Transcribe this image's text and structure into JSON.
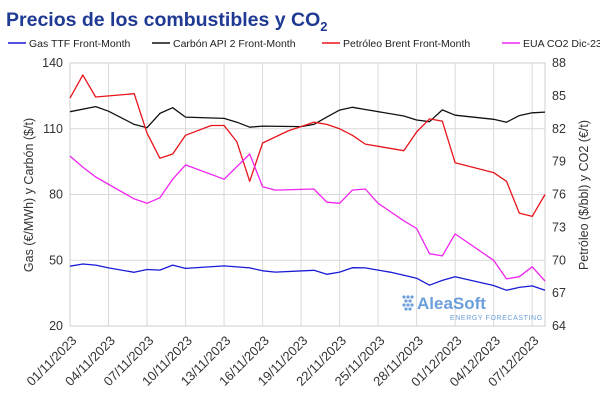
{
  "chart_data": {
    "type": "line",
    "title": "Precios de los combustibles y CO",
    "title_subscript": "2",
    "ylabel_left": "Gas (€/MWh) y Carbón ($/t)",
    "ylabel_right": "Petróleo ($/bbl) y CO2 (€/t)",
    "ylim_left": [
      20,
      140
    ],
    "ylim_right": [
      64,
      88
    ],
    "yticks_left": [
      20,
      50,
      80,
      110,
      140
    ],
    "yticks_right": [
      64,
      67,
      70,
      73,
      76,
      79,
      82,
      85,
      88
    ],
    "xlim": [
      0,
      37
    ],
    "xticks": [
      {
        "x": 0,
        "label": "01/11/2023"
      },
      {
        "x": 3,
        "label": "04/11/2023"
      },
      {
        "x": 6,
        "label": "07/11/2023"
      },
      {
        "x": 9,
        "label": "10/11/2023"
      },
      {
        "x": 12,
        "label": "13/11/2023"
      },
      {
        "x": 15,
        "label": "16/11/2023"
      },
      {
        "x": 18,
        "label": "19/11/2023"
      },
      {
        "x": 21,
        "label": "22/11/2023"
      },
      {
        "x": 24,
        "label": "25/11/2023"
      },
      {
        "x": 27,
        "label": "28/11/2023"
      },
      {
        "x": 30,
        "label": "01/12/2023"
      },
      {
        "x": 33,
        "label": "04/12/2023"
      },
      {
        "x": 36,
        "label": "07/12/2023"
      }
    ],
    "grid": true,
    "legend_position": "top",
    "series": [
      {
        "name": "Gas TTF Front-Month",
        "axis": "left",
        "color": "#1a1ad6",
        "points": [
          [
            0,
            47.3
          ],
          [
            1,
            48.3
          ],
          [
            2,
            47.8
          ],
          [
            3,
            46.5
          ],
          [
            5,
            44.5
          ],
          [
            6,
            45.8
          ],
          [
            7,
            45.5
          ],
          [
            8,
            47.8
          ],
          [
            9,
            46.3
          ],
          [
            12,
            47.4
          ],
          [
            14,
            46.5
          ],
          [
            15,
            45.2
          ],
          [
            16,
            44.6
          ],
          [
            19,
            45.4
          ],
          [
            20,
            43.6
          ],
          [
            21,
            44.6
          ],
          [
            22,
            46.6
          ],
          [
            23,
            46.5
          ],
          [
            24,
            45.5
          ],
          [
            25,
            44.5
          ],
          [
            26,
            43.2
          ],
          [
            27,
            41.8
          ],
          [
            28,
            38.6
          ],
          [
            29,
            40.8
          ],
          [
            30,
            42.5
          ],
          [
            33,
            38.5
          ],
          [
            34,
            36.3
          ],
          [
            35,
            37.6
          ],
          [
            36,
            38.3
          ],
          [
            37,
            36.3
          ]
        ]
      },
      {
        "name": "Carbón API 2 Front-Month",
        "axis": "left",
        "color": "#111111",
        "points": [
          [
            0,
            117.8
          ],
          [
            2,
            120.1
          ],
          [
            3,
            118
          ],
          [
            4,
            115
          ],
          [
            5,
            112
          ],
          [
            6,
            110.5
          ],
          [
            7,
            117
          ],
          [
            8,
            119.6
          ],
          [
            9,
            115.3
          ],
          [
            12,
            114.7
          ],
          [
            13,
            113
          ],
          [
            14,
            110.7
          ],
          [
            15,
            111.2
          ],
          [
            18,
            111
          ],
          [
            19,
            112
          ],
          [
            20,
            115.3
          ],
          [
            21,
            118.5
          ],
          [
            22,
            119.8
          ],
          [
            23,
            118.8
          ],
          [
            26,
            115.8
          ],
          [
            27,
            114
          ],
          [
            28,
            113.2
          ],
          [
            29,
            118.6
          ],
          [
            30,
            116.2
          ],
          [
            33,
            114.3
          ],
          [
            34,
            113
          ],
          [
            35,
            116
          ],
          [
            36,
            117.3
          ],
          [
            37,
            117.6
          ]
        ]
      },
      {
        "name": "Petróleo Brent Front-Month",
        "axis": "right",
        "color": "#e8141c",
        "points": [
          [
            0,
            84.8
          ],
          [
            1,
            86.9
          ],
          [
            2,
            84.9
          ],
          [
            5,
            85.2
          ],
          [
            6,
            81.6
          ],
          [
            7,
            79.3
          ],
          [
            8,
            79.7
          ],
          [
            9,
            81.4
          ],
          [
            11,
            82.3
          ],
          [
            12,
            82.3
          ],
          [
            13,
            80.8
          ],
          [
            14,
            77.2
          ],
          [
            15,
            80.7
          ],
          [
            17,
            81.8
          ],
          [
            19,
            82.6
          ],
          [
            20,
            82.4
          ],
          [
            21,
            82.0
          ],
          [
            22,
            81.4
          ],
          [
            23,
            80.6
          ],
          [
            26,
            80.0
          ],
          [
            27,
            81.7
          ],
          [
            28,
            82.9
          ],
          [
            29,
            82.7
          ],
          [
            30,
            78.9
          ],
          [
            33,
            78.0
          ],
          [
            34,
            77.2
          ],
          [
            35,
            74.3
          ],
          [
            36,
            74.0
          ],
          [
            37,
            76.0
          ]
        ]
      },
      {
        "name": "EUA CO2 Dic-23",
        "axis": "right",
        "color": "#f024f0",
        "points": [
          [
            0,
            79.5
          ],
          [
            1,
            78.5
          ],
          [
            2,
            77.6
          ],
          [
            5,
            75.6
          ],
          [
            6,
            75.2
          ],
          [
            7,
            75.7
          ],
          [
            8,
            77.4
          ],
          [
            9,
            78.7
          ],
          [
            12,
            77.4
          ],
          [
            14,
            79.7
          ],
          [
            15,
            76.7
          ],
          [
            16,
            76.4
          ],
          [
            19,
            76.5
          ],
          [
            20,
            75.3
          ],
          [
            21,
            75.2
          ],
          [
            22,
            76.4
          ],
          [
            23,
            76.5
          ],
          [
            24,
            75.2
          ],
          [
            26,
            73.6
          ],
          [
            27,
            72.9
          ],
          [
            28,
            70.6
          ],
          [
            29,
            70.4
          ],
          [
            30,
            72.4
          ],
          [
            33,
            70.0
          ],
          [
            34,
            68.3
          ],
          [
            35,
            68.5
          ],
          [
            36,
            69.4
          ],
          [
            37,
            68.1
          ]
        ]
      }
    ]
  },
  "watermark": {
    "brand": "AleaSoft",
    "tagline": "ENERGY FORECASTING"
  }
}
